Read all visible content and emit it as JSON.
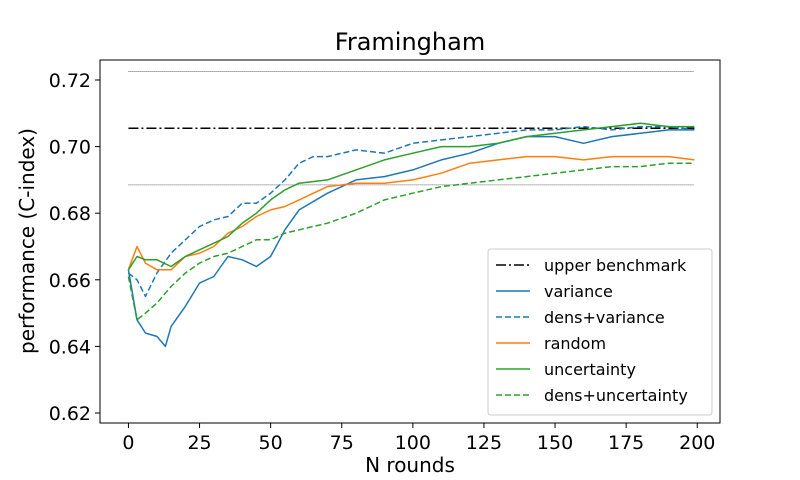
{
  "chart_data": {
    "type": "line",
    "title": "Framingham",
    "xlabel": "N rounds",
    "ylabel": "performance (C-index)",
    "xlim": [
      -10,
      208
    ],
    "ylim": [
      0.617,
      0.726
    ],
    "xticks": [
      0,
      25,
      50,
      75,
      100,
      125,
      150,
      175,
      200
    ],
    "yticks": [
      0.62,
      0.64,
      0.66,
      0.68,
      0.7,
      0.72
    ],
    "ytick_labels": [
      "0.62",
      "0.64",
      "0.66",
      "0.68",
      "0.70",
      "0.72"
    ],
    "grid": false,
    "legend_position": "bottom-right",
    "benchmark": {
      "name": "upper benchmark",
      "value": 0.7055,
      "upper": 0.7225,
      "lower": 0.6885,
      "x_range": [
        0,
        199
      ]
    },
    "series": [
      {
        "name": "variance",
        "color": "#1f77b4",
        "dash": "solid",
        "x": [
          0,
          3,
          6,
          10,
          13,
          15,
          20,
          25,
          30,
          35,
          40,
          45,
          50,
          55,
          60,
          70,
          80,
          90,
          100,
          110,
          120,
          130,
          140,
          150,
          160,
          170,
          180,
          190,
          199
        ],
        "y": [
          0.663,
          0.648,
          0.644,
          0.643,
          0.64,
          0.646,
          0.652,
          0.659,
          0.661,
          0.667,
          0.666,
          0.664,
          0.667,
          0.675,
          0.681,
          0.686,
          0.69,
          0.691,
          0.693,
          0.696,
          0.698,
          0.701,
          0.703,
          0.703,
          0.701,
          0.703,
          0.704,
          0.705,
          0.705
        ]
      },
      {
        "name": "dens+variance",
        "color": "#1f77b4",
        "dash": "dashed",
        "x": [
          0,
          3,
          6,
          10,
          15,
          20,
          25,
          30,
          35,
          40,
          45,
          50,
          55,
          60,
          65,
          70,
          80,
          90,
          100,
          110,
          120,
          130,
          140,
          150,
          160,
          170,
          180,
          190,
          199
        ],
        "y": [
          0.662,
          0.66,
          0.655,
          0.662,
          0.668,
          0.672,
          0.676,
          0.678,
          0.679,
          0.683,
          0.683,
          0.686,
          0.69,
          0.695,
          0.697,
          0.697,
          0.699,
          0.698,
          0.701,
          0.702,
          0.703,
          0.704,
          0.705,
          0.705,
          0.706,
          0.705,
          0.706,
          0.706,
          0.705
        ]
      },
      {
        "name": "random",
        "color": "#ff7f0e",
        "dash": "solid",
        "x": [
          0,
          3,
          6,
          10,
          15,
          20,
          25,
          30,
          35,
          40,
          45,
          50,
          55,
          60,
          70,
          80,
          90,
          100,
          110,
          120,
          130,
          140,
          150,
          160,
          170,
          180,
          190,
          199
        ],
        "y": [
          0.663,
          0.67,
          0.665,
          0.663,
          0.663,
          0.667,
          0.668,
          0.67,
          0.674,
          0.676,
          0.679,
          0.681,
          0.682,
          0.684,
          0.688,
          0.689,
          0.689,
          0.69,
          0.692,
          0.695,
          0.696,
          0.697,
          0.697,
          0.696,
          0.697,
          0.697,
          0.697,
          0.696
        ]
      },
      {
        "name": "uncertainty",
        "color": "#2ca02c",
        "dash": "solid",
        "x": [
          0,
          3,
          6,
          10,
          15,
          20,
          25,
          30,
          35,
          40,
          45,
          50,
          55,
          60,
          70,
          80,
          90,
          100,
          110,
          120,
          130,
          140,
          150,
          160,
          170,
          180,
          190,
          199
        ],
        "y": [
          0.663,
          0.667,
          0.666,
          0.666,
          0.664,
          0.667,
          0.669,
          0.671,
          0.673,
          0.677,
          0.68,
          0.684,
          0.687,
          0.689,
          0.69,
          0.693,
          0.696,
          0.698,
          0.7,
          0.7,
          0.701,
          0.703,
          0.704,
          0.705,
          0.706,
          0.707,
          0.706,
          0.706
        ]
      },
      {
        "name": "dens+uncertainty",
        "color": "#2ca02c",
        "dash": "dashed",
        "x": [
          0,
          3,
          6,
          10,
          15,
          20,
          25,
          30,
          35,
          40,
          45,
          50,
          55,
          60,
          70,
          80,
          90,
          100,
          110,
          120,
          130,
          140,
          150,
          160,
          170,
          180,
          190,
          199
        ],
        "y": [
          0.661,
          0.648,
          0.65,
          0.653,
          0.658,
          0.662,
          0.665,
          0.667,
          0.668,
          0.67,
          0.672,
          0.672,
          0.674,
          0.675,
          0.677,
          0.68,
          0.684,
          0.686,
          0.688,
          0.689,
          0.69,
          0.691,
          0.692,
          0.693,
          0.694,
          0.694,
          0.695,
          0.695
        ]
      }
    ]
  }
}
